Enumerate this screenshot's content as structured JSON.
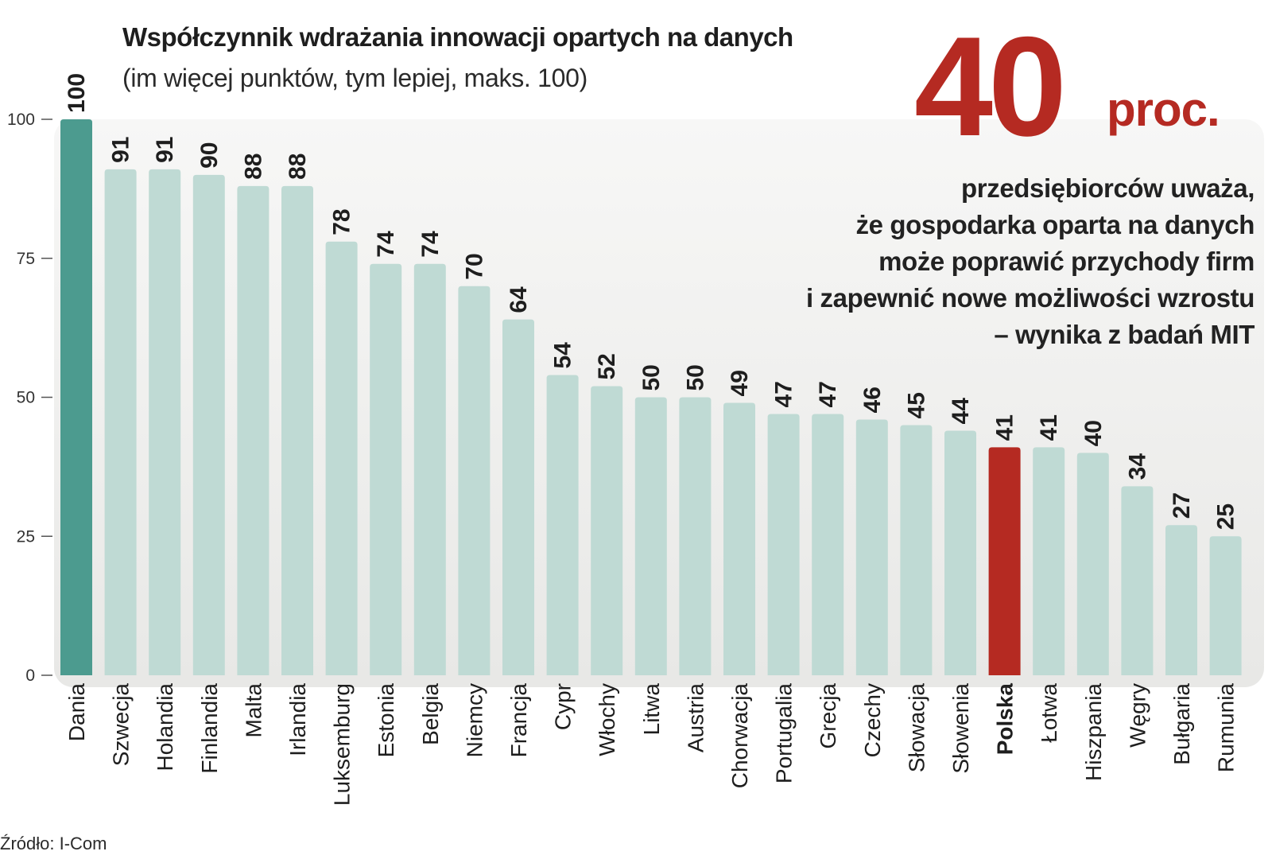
{
  "title": "Współczynnik wdrażania innowacji opartych na danych",
  "subtitle": "(im więcej punktów, tym lepiej, maks. 100)",
  "source": "Źródło: I-Com",
  "highlight": {
    "number": "40",
    "unit": "proc.",
    "lines": [
      "przedsiębiorców uważa,",
      "że gospodarka oparta na danych",
      "może poprawić przychody firm",
      "i zapewnić nowe możliwości wzrostu",
      "– wynika z badań MIT"
    ]
  },
  "colors": {
    "default_bar": "#bfdad4",
    "top_bar": "#4c9b8f",
    "polska_bar": "#b52a22",
    "accent_red": "#b52a22",
    "panel_top": "#f7f7f6",
    "panel_bottom": "#e8e8e6"
  },
  "chart_data": {
    "type": "bar",
    "categories": [
      "Dania",
      "Szwecja",
      "Holandia",
      "Finlandia",
      "Malta",
      "Irlandia",
      "Luksemburg",
      "Estonia",
      "Belgia",
      "Niemcy",
      "Francja",
      "Cypr",
      "Włochy",
      "Litwa",
      "Austria",
      "Chorwacja",
      "Portugalia",
      "Grecja",
      "Czechy",
      "Słowacja",
      "Słowenia",
      "Polska",
      "Łotwa",
      "Hiszpania",
      "Węgry",
      "Bułgaria",
      "Rumunia"
    ],
    "values": [
      100,
      91,
      91,
      90,
      88,
      88,
      78,
      74,
      74,
      70,
      64,
      54,
      52,
      50,
      50,
      49,
      47,
      47,
      46,
      45,
      44,
      41,
      41,
      40,
      34,
      27,
      25
    ],
    "highlight_category": "Polska",
    "title": "Współczynnik wdrażania innowacji opartych na danych",
    "xlabel": "",
    "ylabel": "",
    "ylim": [
      0,
      100
    ],
    "yticks": [
      0,
      25,
      50,
      75,
      100
    ],
    "grid": false,
    "data_labels": true,
    "legend": "none"
  }
}
